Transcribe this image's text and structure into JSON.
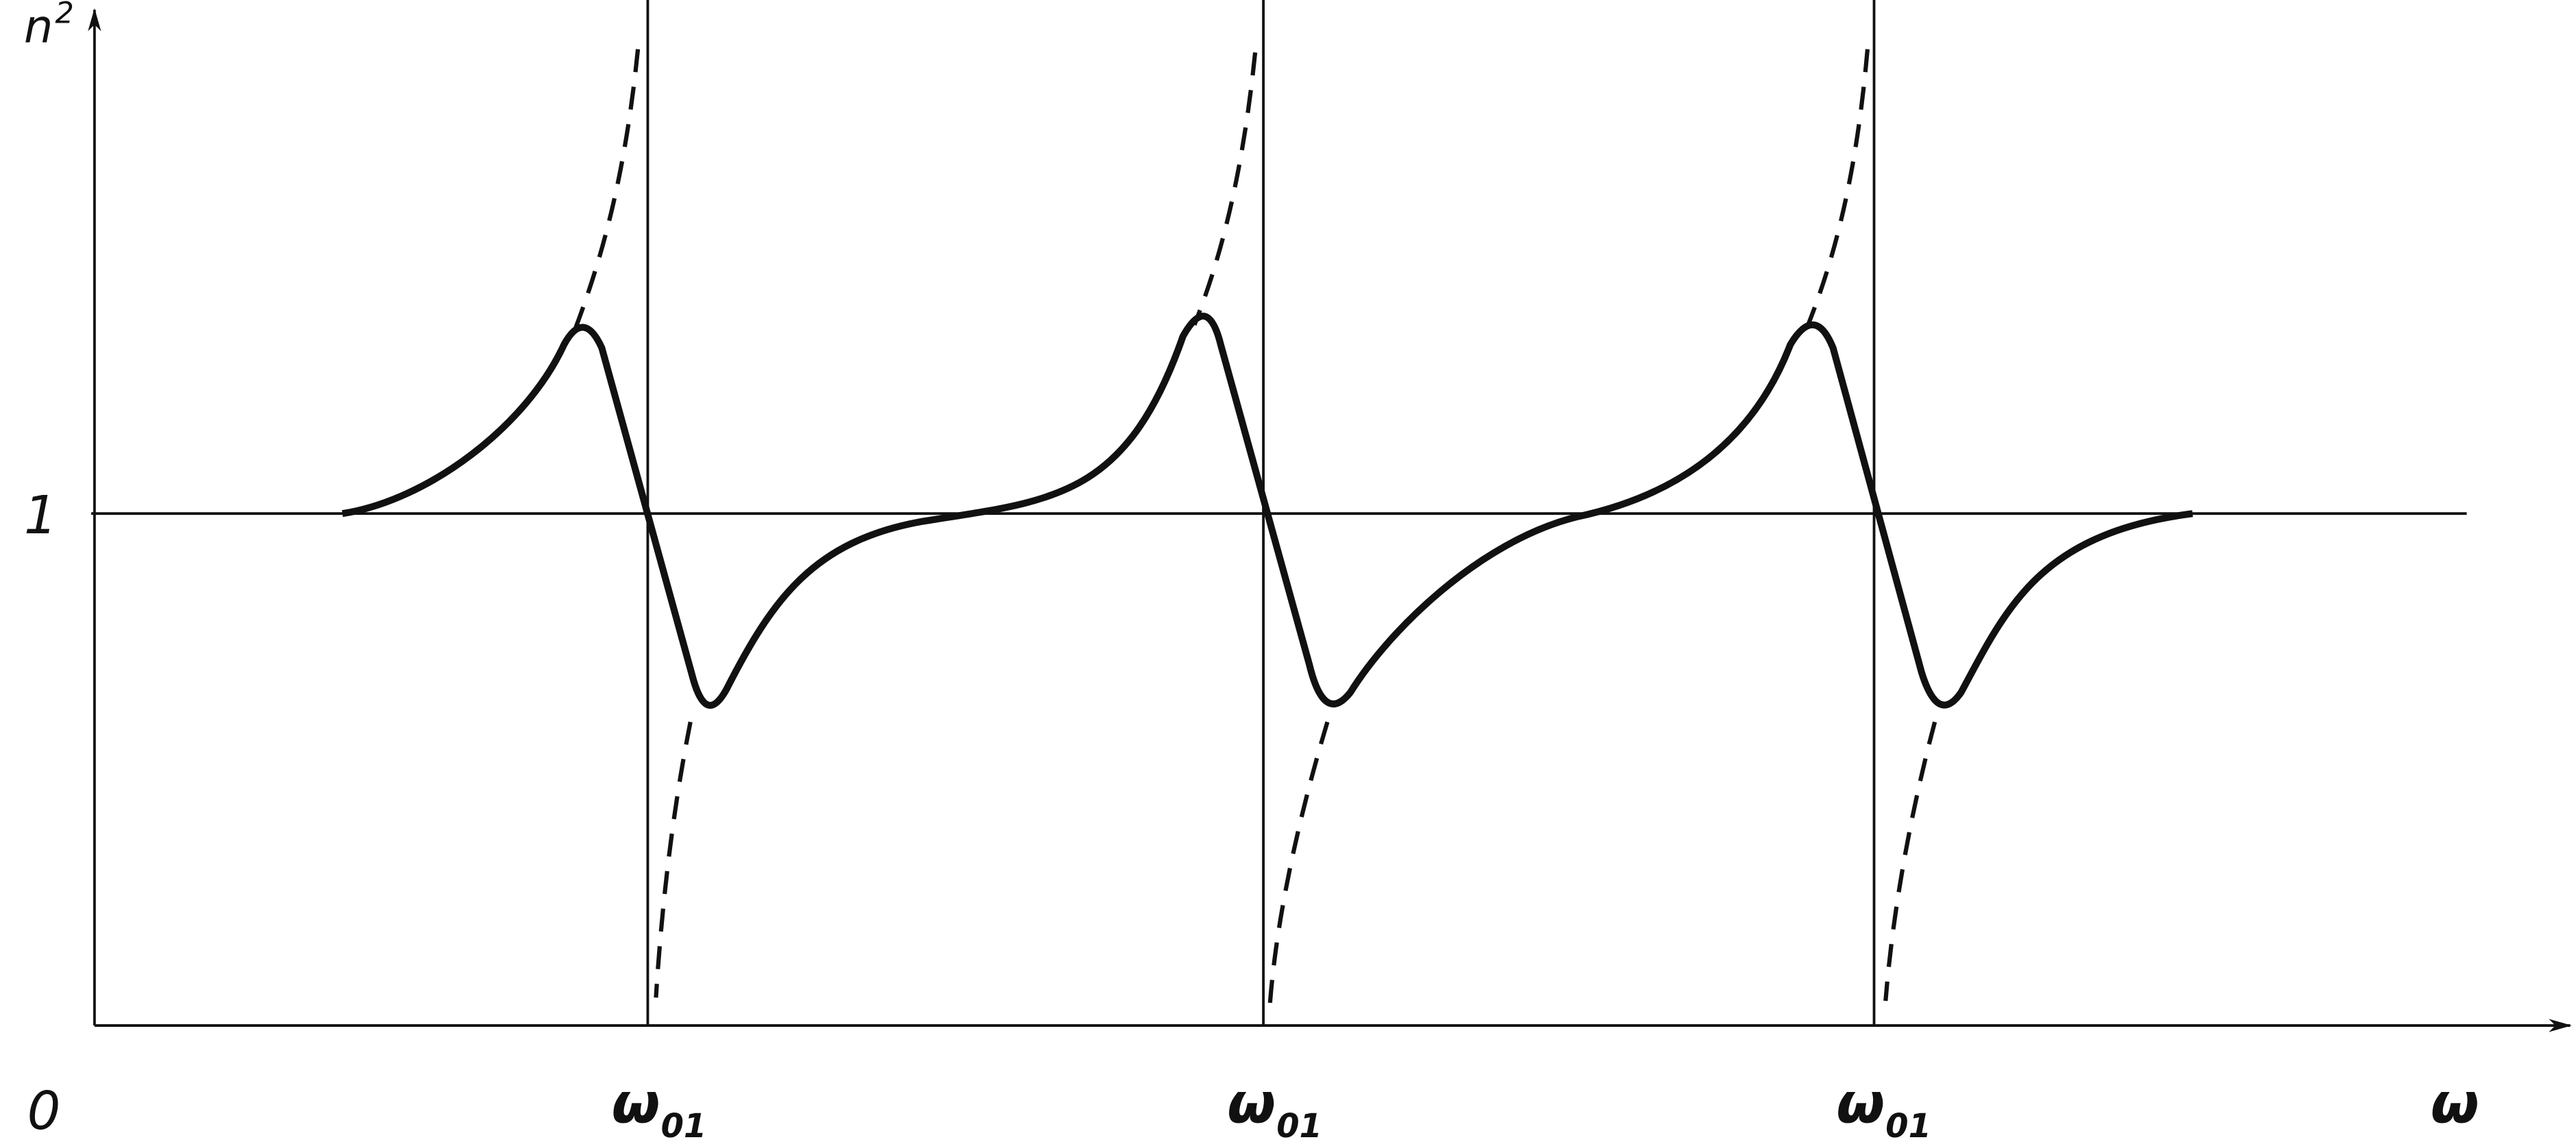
{
  "axes": {
    "y_label": "n",
    "y_label_superscript": "2",
    "x_label": "ω",
    "origin": "0",
    "unity_level": "1"
  },
  "resonances": [
    {
      "label": "ω",
      "subscript": "01"
    },
    {
      "label": "ω",
      "subscript": "01"
    },
    {
      "label": "ω",
      "subscript": "01"
    }
  ]
}
